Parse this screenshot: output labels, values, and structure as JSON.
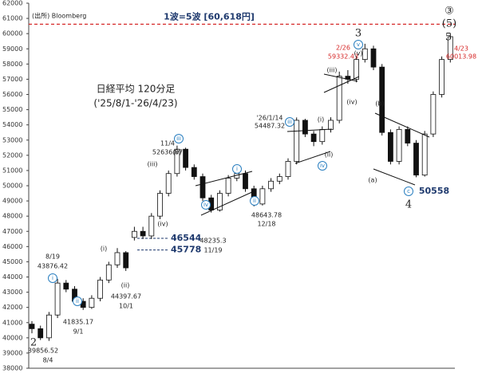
{
  "chart_data": {
    "type": "candlestick",
    "title": "日経平均 120分足",
    "subtitle": "('25/8/1-'26/4/23)",
    "source": "(出所) Bloomberg",
    "categories": [
      null,
      null,
      null,
      null,
      null,
      null,
      null,
      null,
      null,
      null,
      null,
      null,
      null,
      null,
      null,
      null,
      null,
      null,
      null,
      null,
      null,
      null,
      null,
      null,
      null,
      null,
      null,
      null,
      null,
      null,
      null,
      null,
      null,
      null,
      null,
      null,
      null,
      null,
      null,
      null,
      null,
      null,
      null,
      null,
      null,
      null,
      null,
      null,
      null,
      null
    ],
    "open": [
      40900,
      40600,
      40000,
      41500,
      43600,
      43200,
      42400,
      42000,
      42600,
      43800,
      44800,
      45600,
      46600,
      47000,
      46700,
      48000,
      49500,
      50800,
      52400,
      51200,
      50600,
      49200,
      48400,
      49500,
      50500,
      50800,
      49800,
      48800,
      49800,
      50300,
      50600,
      51600,
      54300,
      53400,
      52900,
      53700,
      54300,
      57200,
      57000,
      58300,
      59000,
      57800,
      53500,
      51600,
      53700,
      52800,
      50700,
      53400,
      56000,
      58300
    ],
    "high": [
      41100,
      40800,
      41700,
      43876.42,
      43800,
      43400,
      42600,
      42800,
      44000,
      45000,
      45900,
      45700,
      47300,
      47300,
      48200,
      49700,
      51000,
      52636.87,
      52500,
      51400,
      50800,
      49400,
      49700,
      50700,
      51200,
      51000,
      50000,
      50000,
      50500,
      50800,
      51800,
      54487.32,
      54400,
      53600,
      53900,
      54500,
      57500,
      57600,
      58500,
      59332.43,
      59200,
      58000,
      53700,
      53900,
      53900,
      53000,
      53600,
      56200,
      58500,
      60013.98
    ],
    "low": [
      40300,
      39856.52,
      39800,
      41300,
      43000,
      42200,
      41835.17,
      41900,
      42400,
      43600,
      44600,
      44397.67,
      46400,
      46500,
      46500,
      47800,
      49300,
      50600,
      51000,
      50400,
      49000,
      48235.3,
      48300,
      49300,
      50300,
      49600,
      48643.78,
      48700,
      49600,
      50100,
      50400,
      51400,
      53200,
      52600,
      52700,
      53500,
      54100,
      56700,
      56800,
      58100,
      57600,
      53300,
      51400,
      51400,
      52600,
      50558,
      50600,
      53200,
      55800,
      58100
    ],
    "close": [
      40600,
      40000,
      41500,
      43600,
      43200,
      42400,
      42000,
      42600,
      43800,
      44800,
      45600,
      44600,
      47000,
      46700,
      48000,
      49500,
      50800,
      52400,
      51200,
      50600,
      49200,
      48400,
      49500,
      50500,
      50800,
      49800,
      48800,
      49800,
      50300,
      50600,
      51600,
      54300,
      53400,
      52900,
      53700,
      54300,
      57200,
      57000,
      58300,
      59000,
      57800,
      53500,
      51600,
      53700,
      52800,
      50700,
      53400,
      56000,
      58300,
      59800
    ],
    "up_color": "#ffffff",
    "down_color": "#111111",
    "target": {
      "value": 60618,
      "label": "1波=5波 [60,618円]",
      "color": "#d62828"
    },
    "levels": [
      46544,
      45778
    ],
    "annotations": [
      "2",
      "39856.52",
      "8/4",
      "8/19",
      "43876.42",
      "i",
      "ii",
      "41835.17",
      "9/1",
      "(i)",
      "(ii)",
      "44397.67",
      "10/1",
      "(iii)",
      "(iv)",
      "11/4",
      "52636.87",
      "(v)",
      "iii",
      "iv",
      "48235.3",
      "11/19",
      "i",
      "ii",
      "48643.78",
      "12/18",
      "'26/1/14",
      "54487.32",
      "iii",
      "(i)",
      "(ii)",
      "iv",
      "(iii)",
      "(iv)",
      "2/26",
      "59332.43",
      "v",
      "(v)",
      "3",
      "(a)",
      "(b)",
      "c",
      "4",
      "50558",
      "4/23",
      "60013.98",
      "5",
      "(5)",
      "③"
    ],
    "ylim": [
      38000,
      62000
    ],
    "yticks": [
      38000,
      39000,
      40000,
      41000,
      42000,
      43000,
      44000,
      45000,
      46000,
      47000,
      48000,
      49000,
      50000,
      51000,
      52000,
      53000,
      54000,
      55000,
      56000,
      57000,
      58000,
      59000,
      60000,
      61000,
      62000
    ]
  }
}
